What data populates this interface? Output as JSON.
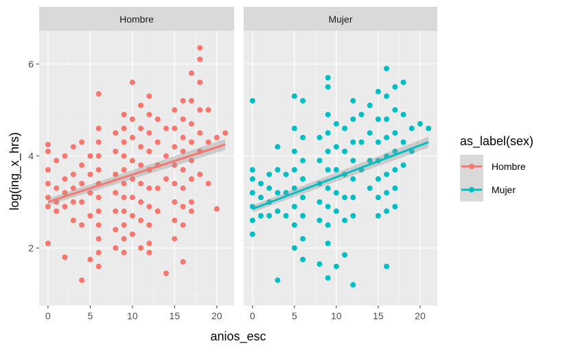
{
  "chart_data": {
    "type": "scatter",
    "xlabel": "anios_esc",
    "ylabel": "log(ing_x_hrs)",
    "xlim": [
      -1.05,
      22.05
    ],
    "ylim": [
      0.75,
      6.72
    ],
    "x_ticks": [
      0,
      5,
      10,
      15,
      20
    ],
    "y_ticks": [
      2,
      4,
      6
    ],
    "grid": true,
    "legend": {
      "title": "as_label(sex)",
      "position": "right",
      "entries": [
        {
          "label": "Hombre",
          "color": "#F8766D"
        },
        {
          "label": "Mujer",
          "color": "#00BFC4"
        }
      ]
    },
    "panels": [
      {
        "label": "Hombre",
        "color": "#F8766D",
        "trend": {
          "x": [
            0,
            21
          ],
          "y": [
            3.0,
            4.25
          ]
        },
        "points": [
          [
            0,
            4.25
          ],
          [
            0,
            4.1
          ],
          [
            0,
            3.7
          ],
          [
            0,
            3.4
          ],
          [
            0,
            3.1
          ],
          [
            0,
            2.9
          ],
          [
            0,
            2.1
          ],
          [
            1,
            3.9
          ],
          [
            1,
            3.3
          ],
          [
            1,
            3.0
          ],
          [
            1,
            2.8
          ],
          [
            2,
            4.0
          ],
          [
            2,
            3.5
          ],
          [
            2,
            3.2
          ],
          [
            2,
            2.9
          ],
          [
            2,
            1.8
          ],
          [
            3,
            4.2
          ],
          [
            3,
            3.6
          ],
          [
            3,
            3.3
          ],
          [
            3,
            3.0
          ],
          [
            3,
            2.6
          ],
          [
            4,
            4.3
          ],
          [
            4,
            3.8
          ],
          [
            4,
            3.4
          ],
          [
            4,
            3.0
          ],
          [
            4,
            2.5
          ],
          [
            4,
            1.3
          ],
          [
            5,
            4.0
          ],
          [
            5,
            3.6
          ],
          [
            5,
            3.2
          ],
          [
            5,
            2.7
          ],
          [
            5,
            1.75
          ],
          [
            6,
            5.35
          ],
          [
            6,
            4.6
          ],
          [
            6,
            4.3
          ],
          [
            6,
            4.0
          ],
          [
            6,
            3.7
          ],
          [
            6,
            3.4
          ],
          [
            6,
            3.1
          ],
          [
            6,
            2.8
          ],
          [
            6,
            2.5
          ],
          [
            6,
            2.2
          ],
          [
            6,
            1.9
          ],
          [
            6,
            1.6
          ],
          [
            8,
            4.5
          ],
          [
            8,
            4.1
          ],
          [
            8,
            3.6
          ],
          [
            8,
            3.2
          ],
          [
            8,
            2.8
          ],
          [
            8,
            2.4
          ],
          [
            8,
            2.0
          ],
          [
            9,
            4.9
          ],
          [
            9,
            4.6
          ],
          [
            9,
            4.3
          ],
          [
            9,
            4.0
          ],
          [
            9,
            3.7
          ],
          [
            9,
            3.4
          ],
          [
            9,
            3.1
          ],
          [
            9,
            2.8
          ],
          [
            9,
            2.5
          ],
          [
            9,
            2.2
          ],
          [
            9,
            1.9
          ],
          [
            10,
            5.6
          ],
          [
            10,
            4.8
          ],
          [
            10,
            4.4
          ],
          [
            10,
            3.9
          ],
          [
            10,
            3.5
          ],
          [
            10,
            3.1
          ],
          [
            10,
            2.7
          ],
          [
            10,
            2.3
          ],
          [
            11,
            5.1
          ],
          [
            11,
            4.6
          ],
          [
            11,
            4.2
          ],
          [
            11,
            3.8
          ],
          [
            11,
            3.4
          ],
          [
            11,
            3.0
          ],
          [
            11,
            2.6
          ],
          [
            11,
            2.0
          ],
          [
            12,
            5.3
          ],
          [
            12,
            4.9
          ],
          [
            12,
            4.5
          ],
          [
            12,
            4.1
          ],
          [
            12,
            3.7
          ],
          [
            12,
            3.3
          ],
          [
            12,
            2.9
          ],
          [
            12,
            2.5
          ],
          [
            12,
            2.1
          ],
          [
            12,
            1.9
          ],
          [
            13,
            4.8
          ],
          [
            13,
            4.3
          ],
          [
            13,
            3.8
          ],
          [
            13,
            3.3
          ],
          [
            13,
            2.8
          ],
          [
            14,
            4.6
          ],
          [
            14,
            4.0
          ],
          [
            14,
            3.5
          ],
          [
            14,
            1.45
          ],
          [
            15,
            5.0
          ],
          [
            15,
            4.6
          ],
          [
            15,
            4.2
          ],
          [
            15,
            3.8
          ],
          [
            15,
            3.4
          ],
          [
            15,
            3.0
          ],
          [
            15,
            2.6
          ],
          [
            15,
            2.2
          ],
          [
            16,
            5.2
          ],
          [
            16,
            4.8
          ],
          [
            16,
            4.4
          ],
          [
            16,
            4.1
          ],
          [
            16,
            3.7
          ],
          [
            16,
            3.3
          ],
          [
            16,
            2.9
          ],
          [
            16,
            2.5
          ],
          [
            16,
            1.7
          ],
          [
            17,
            5.8
          ],
          [
            17,
            5.2
          ],
          [
            17,
            4.7
          ],
          [
            17,
            4.3
          ],
          [
            17,
            3.9
          ],
          [
            17,
            3.5
          ],
          [
            17,
            3.0
          ],
          [
            17,
            2.8
          ],
          [
            18,
            6.35
          ],
          [
            18,
            6.1
          ],
          [
            18,
            5.6
          ],
          [
            18,
            5.0
          ],
          [
            18,
            4.5
          ],
          [
            18,
            4.1
          ],
          [
            18,
            3.6
          ],
          [
            19,
            5.0
          ],
          [
            19,
            4.3
          ],
          [
            19,
            3.4
          ],
          [
            20,
            4.4
          ],
          [
            20,
            2.85
          ],
          [
            21,
            4.5
          ]
        ]
      },
      {
        "label": "Mujer",
        "color": "#00BFC4",
        "trend": {
          "x": [
            0,
            21
          ],
          "y": [
            2.85,
            4.3
          ]
        },
        "points": [
          [
            0,
            5.2
          ],
          [
            0,
            3.7
          ],
          [
            0,
            3.5
          ],
          [
            0,
            3.2
          ],
          [
            0,
            2.9
          ],
          [
            0,
            2.6
          ],
          [
            0,
            2.3
          ],
          [
            1,
            3.4
          ],
          [
            1,
            3.1
          ],
          [
            1,
            2.7
          ],
          [
            2,
            3.6
          ],
          [
            2,
            3.3
          ],
          [
            2,
            3.0
          ],
          [
            2,
            2.7
          ],
          [
            3,
            4.2
          ],
          [
            3,
            3.7
          ],
          [
            3,
            3.2
          ],
          [
            3,
            2.8
          ],
          [
            3,
            1.3
          ],
          [
            4,
            3.6
          ],
          [
            4,
            3.2
          ],
          [
            4,
            2.7
          ],
          [
            5,
            5.3
          ],
          [
            5,
            4.6
          ],
          [
            5,
            4.1
          ],
          [
            5,
            3.7
          ],
          [
            5,
            3.3
          ],
          [
            5,
            2.9
          ],
          [
            5,
            2.5
          ],
          [
            5,
            2.0
          ],
          [
            6,
            5.2
          ],
          [
            6,
            4.4
          ],
          [
            6,
            3.9
          ],
          [
            6,
            3.5
          ],
          [
            6,
            3.1
          ],
          [
            6,
            2.7
          ],
          [
            6,
            2.2
          ],
          [
            6,
            1.75
          ],
          [
            8,
            4.4
          ],
          [
            8,
            3.9
          ],
          [
            8,
            3.4
          ],
          [
            8,
            3.0
          ],
          [
            8,
            2.6
          ],
          [
            8,
            1.65
          ],
          [
            9,
            5.7
          ],
          [
            9,
            5.5
          ],
          [
            9,
            4.9
          ],
          [
            9,
            4.5
          ],
          [
            9,
            4.1
          ],
          [
            9,
            3.7
          ],
          [
            9,
            3.3
          ],
          [
            9,
            2.9
          ],
          [
            9,
            2.5
          ],
          [
            9,
            2.1
          ],
          [
            9,
            1.35
          ],
          [
            10,
            4.7
          ],
          [
            10,
            4.2
          ],
          [
            10,
            3.7
          ],
          [
            10,
            3.2
          ],
          [
            10,
            2.8
          ],
          [
            10,
            1.6
          ],
          [
            11,
            4.6
          ],
          [
            11,
            4.1
          ],
          [
            11,
            3.6
          ],
          [
            11,
            3.1
          ],
          [
            11,
            2.6
          ],
          [
            11,
            1.85
          ],
          [
            12,
            5.2
          ],
          [
            12,
            4.8
          ],
          [
            12,
            4.3
          ],
          [
            12,
            3.9
          ],
          [
            12,
            3.5
          ],
          [
            12,
            3.1
          ],
          [
            12,
            2.7
          ],
          [
            12,
            1.2
          ],
          [
            13,
            4.9
          ],
          [
            13,
            4.3
          ],
          [
            13,
            3.7
          ],
          [
            14,
            5.1
          ],
          [
            14,
            4.5
          ],
          [
            14,
            3.9
          ],
          [
            14,
            3.3
          ],
          [
            15,
            5.4
          ],
          [
            15,
            4.8
          ],
          [
            15,
            4.3
          ],
          [
            15,
            3.9
          ],
          [
            15,
            3.5
          ],
          [
            15,
            3.1
          ],
          [
            15,
            2.7
          ],
          [
            16,
            5.9
          ],
          [
            16,
            5.3
          ],
          [
            16,
            4.8
          ],
          [
            16,
            4.4
          ],
          [
            16,
            4.0
          ],
          [
            16,
            3.6
          ],
          [
            16,
            3.2
          ],
          [
            16,
            2.8
          ],
          [
            16,
            1.6
          ],
          [
            17,
            5.5
          ],
          [
            17,
            5.0
          ],
          [
            17,
            4.5
          ],
          [
            17,
            4.1
          ],
          [
            17,
            3.7
          ],
          [
            17,
            3.3
          ],
          [
            17,
            2.9
          ],
          [
            18,
            5.6
          ],
          [
            18,
            4.9
          ],
          [
            18,
            4.3
          ],
          [
            18,
            3.8
          ],
          [
            19,
            4.6
          ],
          [
            19,
            4.1
          ],
          [
            20,
            4.7
          ],
          [
            21,
            4.6
          ]
        ]
      }
    ]
  }
}
